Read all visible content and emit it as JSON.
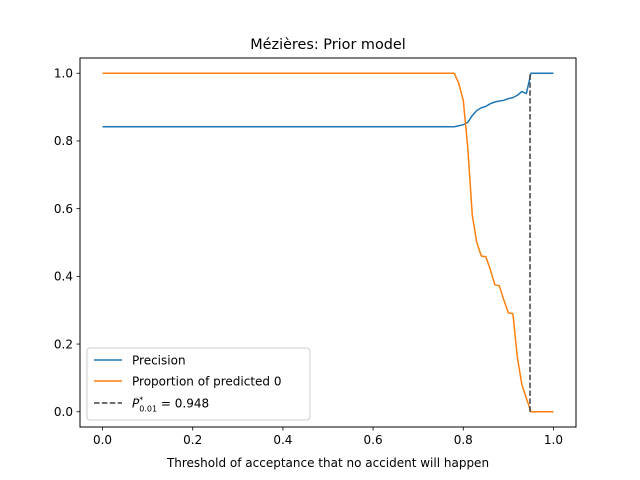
{
  "chart_data": {
    "type": "line",
    "title": "Mézières: Prior model",
    "xlabel": "Threshold of acceptance that no accident will happen",
    "ylabel": "",
    "xlim": [
      -0.05,
      1.05
    ],
    "ylim": [
      -0.045,
      1.045
    ],
    "xticks": [
      0.0,
      0.2,
      0.4,
      0.6,
      0.8,
      1.0
    ],
    "xtick_labels": [
      "0.0",
      "0.2",
      "0.4",
      "0.6",
      "0.8",
      "1.0"
    ],
    "yticks": [
      0.0,
      0.2,
      0.4,
      0.6,
      0.8,
      1.0
    ],
    "ytick_labels": [
      "0.0",
      "0.2",
      "0.4",
      "0.6",
      "0.8",
      "1.0"
    ],
    "grid": false,
    "legend_position": "lower-left",
    "series": [
      {
        "name": "Precision",
        "color": "#1f77b4",
        "style": "solid",
        "x": [
          0.0,
          0.1,
          0.2,
          0.3,
          0.4,
          0.5,
          0.6,
          0.7,
          0.78,
          0.79,
          0.8,
          0.81,
          0.82,
          0.83,
          0.84,
          0.85,
          0.86,
          0.87,
          0.88,
          0.89,
          0.9,
          0.91,
          0.92,
          0.93,
          0.94,
          0.95,
          0.96,
          0.97,
          0.98,
          0.99,
          1.0
        ],
        "y": [
          0.842,
          0.842,
          0.842,
          0.842,
          0.842,
          0.842,
          0.842,
          0.842,
          0.842,
          0.845,
          0.848,
          0.855,
          0.875,
          0.89,
          0.898,
          0.902,
          0.91,
          0.915,
          0.918,
          0.92,
          0.925,
          0.928,
          0.935,
          0.946,
          0.94,
          1.0,
          1.0,
          1.0,
          1.0,
          1.0,
          1.0
        ]
      },
      {
        "name": "Proportion of predicted 0",
        "color": "#ff7f0e",
        "style": "solid",
        "x": [
          0.0,
          0.1,
          0.2,
          0.3,
          0.4,
          0.5,
          0.6,
          0.7,
          0.78,
          0.79,
          0.8,
          0.81,
          0.82,
          0.83,
          0.84,
          0.85,
          0.86,
          0.87,
          0.88,
          0.89,
          0.9,
          0.91,
          0.92,
          0.93,
          0.94,
          0.95,
          0.96,
          0.97,
          0.98,
          0.99,
          1.0
        ],
        "y": [
          1.0,
          1.0,
          1.0,
          1.0,
          1.0,
          1.0,
          1.0,
          1.0,
          1.0,
          0.97,
          0.92,
          0.78,
          0.58,
          0.5,
          0.46,
          0.458,
          0.42,
          0.375,
          0.372,
          0.33,
          0.292,
          0.29,
          0.16,
          0.08,
          0.04,
          0.0,
          0.0,
          0.0,
          0.0,
          0.0,
          0.0
        ]
      }
    ],
    "vline": {
      "x": 0.948,
      "ymin": 0.0,
      "ymax": 1.0,
      "color": "#404040",
      "style": "dashed"
    },
    "legend": [
      {
        "label": "Precision",
        "color": "#1f77b4",
        "style": "solid"
      },
      {
        "label": "Proportion of predicted 0",
        "color": "#ff7f0e",
        "style": "solid"
      },
      {
        "label_symbol": "P",
        "label_sup": "*",
        "label_sub": "0.01",
        "label_suffix": " = 0.948",
        "color": "#404040",
        "style": "dashed"
      }
    ]
  }
}
